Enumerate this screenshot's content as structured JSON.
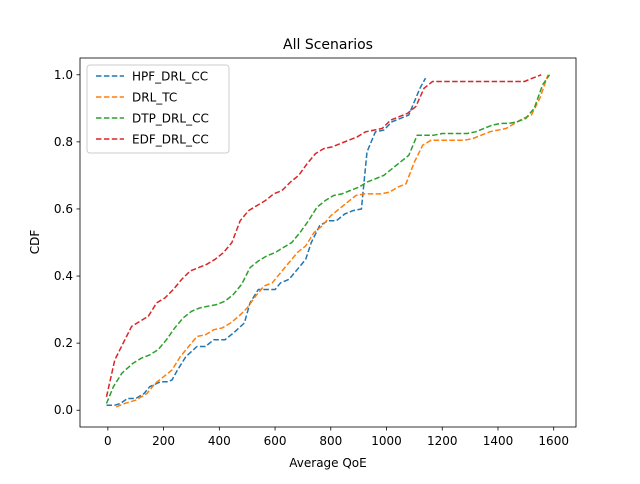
{
  "chart_data": {
    "type": "line",
    "title": "All Scenarios",
    "xlabel": "Average QoE",
    "ylabel": "CDF",
    "xlim": [
      -100,
      1680
    ],
    "ylim": [
      -0.05,
      1.05
    ],
    "xticks": [
      0,
      200,
      400,
      600,
      800,
      1000,
      1200,
      1400,
      1600
    ],
    "yticks": [
      0.0,
      0.2,
      0.4,
      0.6,
      0.8,
      1.0
    ],
    "xtick_labels": [
      "0",
      "200",
      "400",
      "600",
      "800",
      "1000",
      "1200",
      "1400",
      "1600"
    ],
    "ytick_labels": [
      "0.0",
      "0.2",
      "0.4",
      "0.6",
      "0.8",
      "1.0"
    ],
    "grid": false,
    "legend_position": "top-left",
    "series": [
      {
        "name": "HPF_DRL_CC",
        "color": "#1f77b4",
        "x": [
          -5,
          25,
          45,
          70,
          100,
          130,
          150,
          190,
          215,
          230,
          250,
          280,
          320,
          350,
          380,
          400,
          420,
          450,
          490,
          510,
          540,
          600,
          620,
          650,
          670,
          710,
          730,
          760,
          790,
          820,
          850,
          880,
          910,
          930,
          960,
          990,
          1020,
          1050,
          1080,
          1100,
          1120,
          1140
        ],
        "y": [
          0.015,
          0.015,
          0.02,
          0.035,
          0.035,
          0.05,
          0.07,
          0.085,
          0.085,
          0.09,
          0.12,
          0.16,
          0.19,
          0.19,
          0.21,
          0.21,
          0.21,
          0.23,
          0.26,
          0.32,
          0.36,
          0.36,
          0.38,
          0.39,
          0.41,
          0.45,
          0.5,
          0.55,
          0.565,
          0.565,
          0.585,
          0.595,
          0.6,
          0.77,
          0.83,
          0.835,
          0.86,
          0.87,
          0.88,
          0.92,
          0.96,
          0.99
        ]
      },
      {
        "name": "DRL_TC",
        "color": "#ff7f0e",
        "x": [
          30,
          60,
          100,
          140,
          170,
          200,
          230,
          260,
          290,
          320,
          350,
          380,
          410,
          440,
          470,
          500,
          530,
          560,
          590,
          620,
          650,
          680,
          710,
          740,
          770,
          800,
          830,
          860,
          890,
          920,
          950,
          980,
          1010,
          1040,
          1070,
          1100,
          1130,
          1160,
          1190,
          1220,
          1250,
          1280,
          1310,
          1340,
          1370,
          1400,
          1430,
          1460,
          1490,
          1520,
          1550,
          1580
        ],
        "y": [
          0.01,
          0.02,
          0.03,
          0.05,
          0.08,
          0.1,
          0.12,
          0.16,
          0.19,
          0.22,
          0.225,
          0.24,
          0.245,
          0.26,
          0.28,
          0.305,
          0.34,
          0.37,
          0.38,
          0.41,
          0.44,
          0.47,
          0.49,
          0.53,
          0.55,
          0.58,
          0.6,
          0.62,
          0.64,
          0.645,
          0.645,
          0.645,
          0.65,
          0.665,
          0.675,
          0.74,
          0.79,
          0.805,
          0.805,
          0.805,
          0.805,
          0.805,
          0.81,
          0.82,
          0.83,
          0.835,
          0.84,
          0.855,
          0.87,
          0.88,
          0.93,
          1.0
        ]
      },
      {
        "name": "DTP_DRL_CC",
        "color": "#2ca02c",
        "x": [
          -5,
          20,
          50,
          90,
          120,
          150,
          180,
          210,
          240,
          270,
          300,
          330,
          360,
          390,
          420,
          450,
          480,
          510,
          540,
          570,
          600,
          630,
          660,
          690,
          720,
          750,
          780,
          810,
          840,
          870,
          900,
          930,
          960,
          990,
          1020,
          1050,
          1080,
          1110,
          1140,
          1170,
          1200,
          1230,
          1260,
          1290,
          1320,
          1350,
          1380,
          1410,
          1440,
          1470,
          1500,
          1530,
          1560,
          1585
        ],
        "y": [
          0.02,
          0.07,
          0.11,
          0.14,
          0.155,
          0.165,
          0.18,
          0.21,
          0.245,
          0.275,
          0.295,
          0.305,
          0.31,
          0.315,
          0.325,
          0.345,
          0.375,
          0.425,
          0.445,
          0.46,
          0.47,
          0.485,
          0.5,
          0.53,
          0.565,
          0.605,
          0.625,
          0.64,
          0.645,
          0.655,
          0.665,
          0.68,
          0.69,
          0.7,
          0.72,
          0.74,
          0.76,
          0.82,
          0.82,
          0.82,
          0.825,
          0.825,
          0.825,
          0.825,
          0.83,
          0.84,
          0.85,
          0.855,
          0.855,
          0.86,
          0.87,
          0.9,
          0.97,
          1.0
        ]
      },
      {
        "name": "EDF_DRL_CC",
        "color": "#d62728",
        "x": [
          -5,
          25,
          55,
          85,
          115,
          145,
          175,
          205,
          235,
          265,
          295,
          325,
          355,
          385,
          415,
          445,
          475,
          505,
          535,
          565,
          595,
          625,
          655,
          685,
          715,
          745,
          775,
          805,
          835,
          865,
          895,
          925,
          955,
          985,
          1015,
          1045,
          1075,
          1105,
          1135,
          1165,
          1195,
          1225,
          1255,
          1285,
          1315,
          1345,
          1375,
          1405,
          1435,
          1465,
          1495,
          1525,
          1555
        ],
        "y": [
          0.04,
          0.15,
          0.2,
          0.25,
          0.265,
          0.28,
          0.32,
          0.335,
          0.36,
          0.39,
          0.415,
          0.425,
          0.435,
          0.45,
          0.47,
          0.5,
          0.565,
          0.595,
          0.61,
          0.625,
          0.645,
          0.655,
          0.68,
          0.7,
          0.735,
          0.765,
          0.78,
          0.785,
          0.795,
          0.805,
          0.815,
          0.83,
          0.835,
          0.84,
          0.865,
          0.875,
          0.885,
          0.905,
          0.96,
          0.98,
          0.98,
          0.98,
          0.98,
          0.98,
          0.98,
          0.98,
          0.98,
          0.98,
          0.98,
          0.98,
          0.98,
          0.99,
          1.0
        ]
      }
    ]
  }
}
